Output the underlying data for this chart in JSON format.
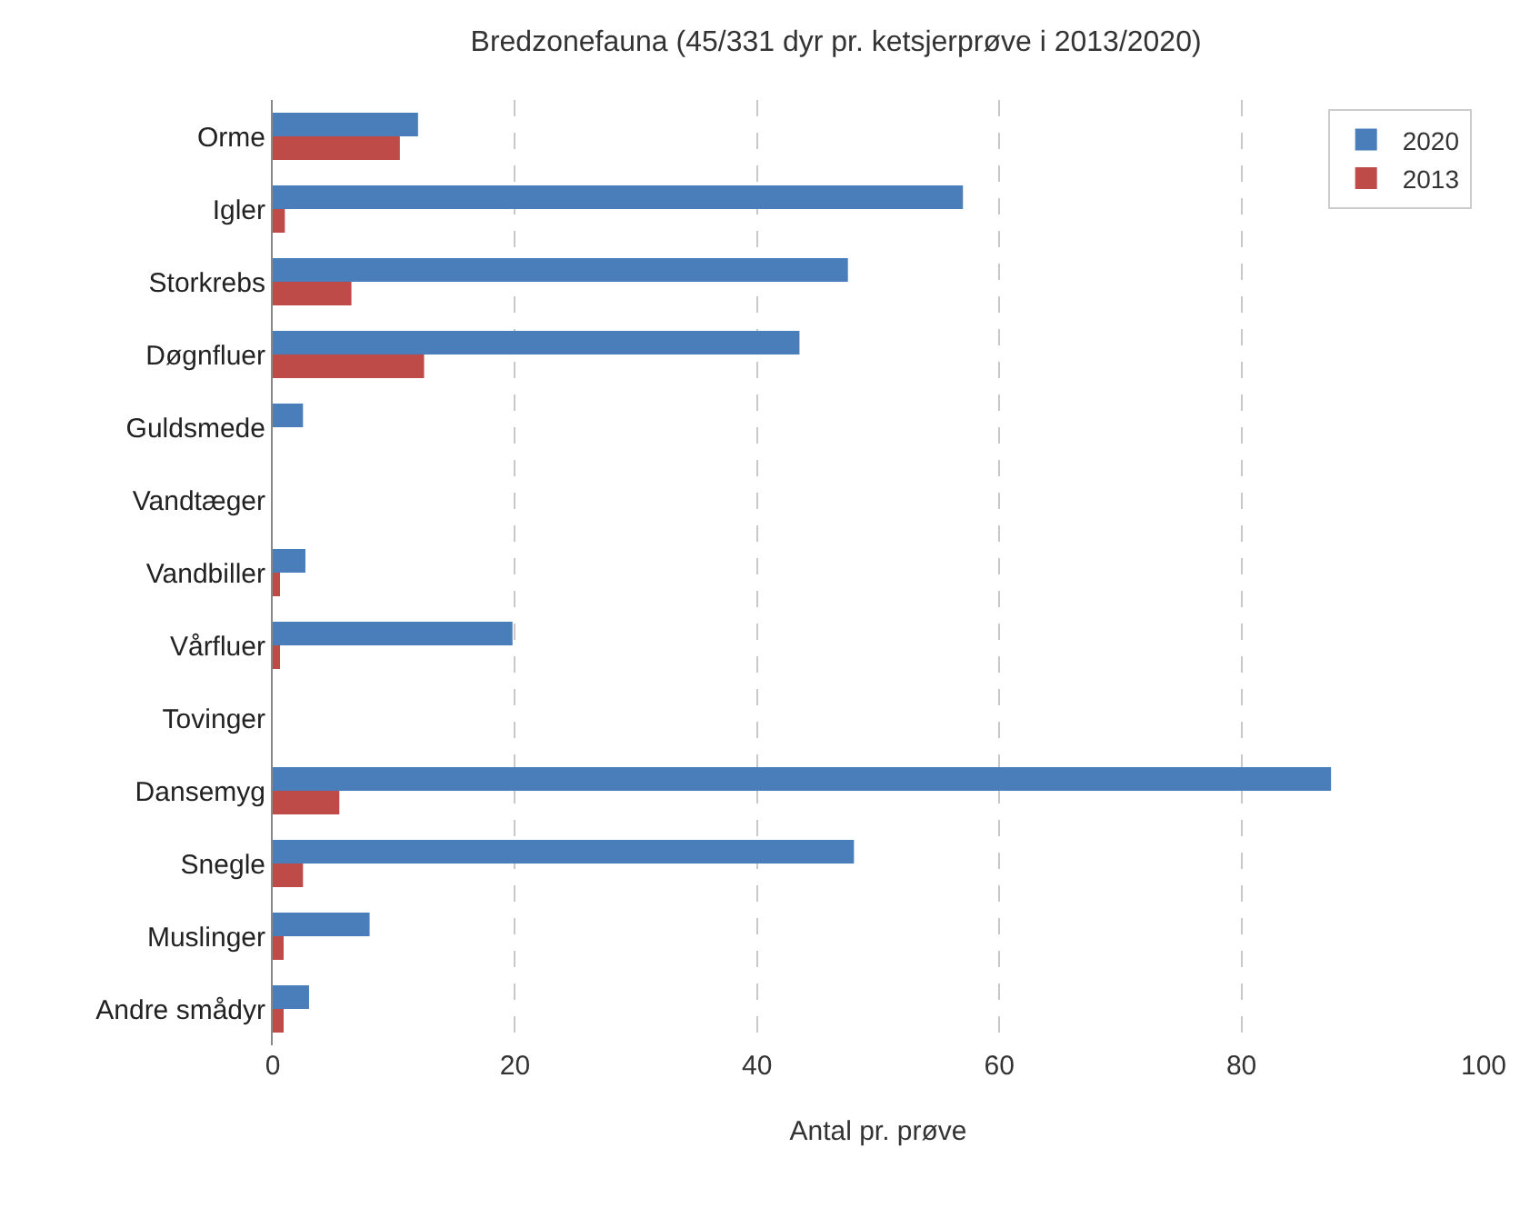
{
  "chart_data": {
    "type": "bar",
    "orientation": "horizontal",
    "title": "Bredzonefauna (45/331 dyr pr. ketsjerprøve i 2013/2020)",
    "xlabel": "Antal pr. prøve",
    "categories": [
      "Orme",
      "Igler",
      "Storkrebs",
      "Døgnfluer",
      "Guldsmede",
      "Vandtæger",
      "Vandbiller",
      "Vårfluer",
      "Tovinger",
      "Dansemyg",
      "Snegle",
      "Muslinger",
      "Andre smådyr"
    ],
    "series": [
      {
        "name": "2020",
        "color": "#4a7ebb",
        "values": [
          12,
          57,
          47.5,
          43.5,
          2.5,
          0,
          2.7,
          19.8,
          0,
          87.4,
          48,
          8,
          3
        ]
      },
      {
        "name": "2013",
        "color": "#be4b48",
        "values": [
          10.5,
          1,
          6.5,
          12.5,
          0,
          0,
          0.6,
          0.6,
          0,
          5.5,
          2.5,
          0.9,
          0.9
        ]
      }
    ],
    "xlim": [
      0,
      100
    ],
    "xticks": [
      0,
      20,
      40,
      60,
      80,
      100
    ],
    "grid": "x",
    "legend": "top right"
  }
}
